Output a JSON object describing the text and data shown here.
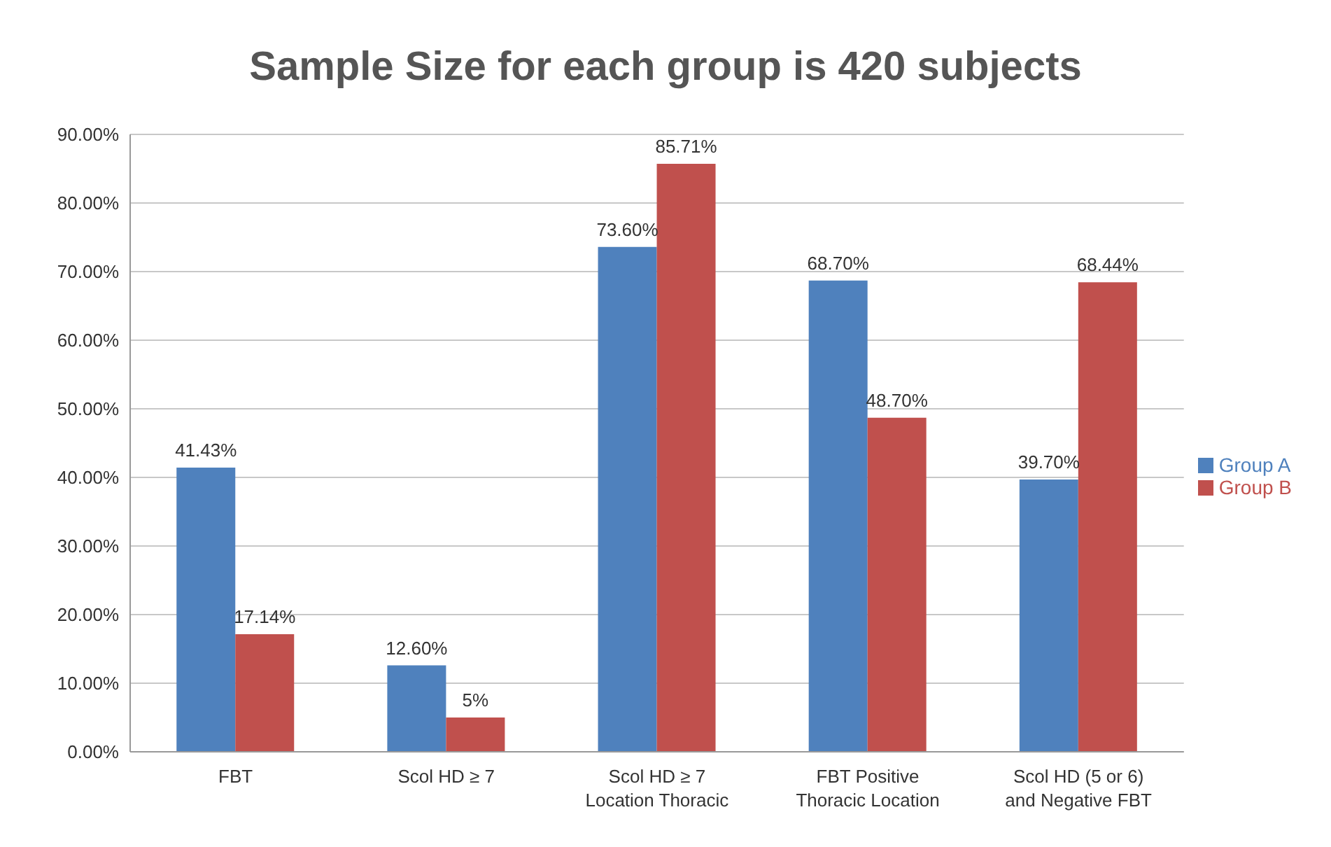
{
  "chart_data": {
    "type": "bar",
    "title": "Sample Size for each group is 420 subjects",
    "categories": [
      "FBT",
      "Scol HD ≥ 7",
      "Scol HD ≥ 7\nLocation Thoracic",
      "FBT Positive\nThoracic Location",
      "Scol HD (5 or 6)\nand Negative FBT"
    ],
    "series": [
      {
        "name": "Group A",
        "color": "#4f81bd",
        "values": [
          41.43,
          12.6,
          73.6,
          68.7,
          39.7
        ],
        "value_labels": [
          "41.43%",
          "12.60%",
          "73.60%",
          "68.70%",
          "39.70%"
        ]
      },
      {
        "name": "Group B",
        "color": "#c0504d",
        "values": [
          17.14,
          5,
          85.71,
          48.7,
          68.44
        ],
        "value_labels": [
          "17.14%",
          "5%",
          "85.71%",
          "48.70%",
          "68.44%"
        ]
      }
    ],
    "ylim": [
      0,
      90
    ],
    "yticks": [
      {
        "value": 0,
        "label": "0.00%"
      },
      {
        "value": 10,
        "label": "10.00%"
      },
      {
        "value": 20,
        "label": "20.00%"
      },
      {
        "value": 30,
        "label": "30.00%"
      },
      {
        "value": 40,
        "label": "40.00%"
      },
      {
        "value": 50,
        "label": "50.00%"
      },
      {
        "value": 60,
        "label": "60.00%"
      },
      {
        "value": 70,
        "label": "70.00%"
      },
      {
        "value": 80,
        "label": "80.00%"
      },
      {
        "value": 90,
        "label": "90.00%"
      }
    ],
    "grid": "y",
    "legend": "right"
  }
}
